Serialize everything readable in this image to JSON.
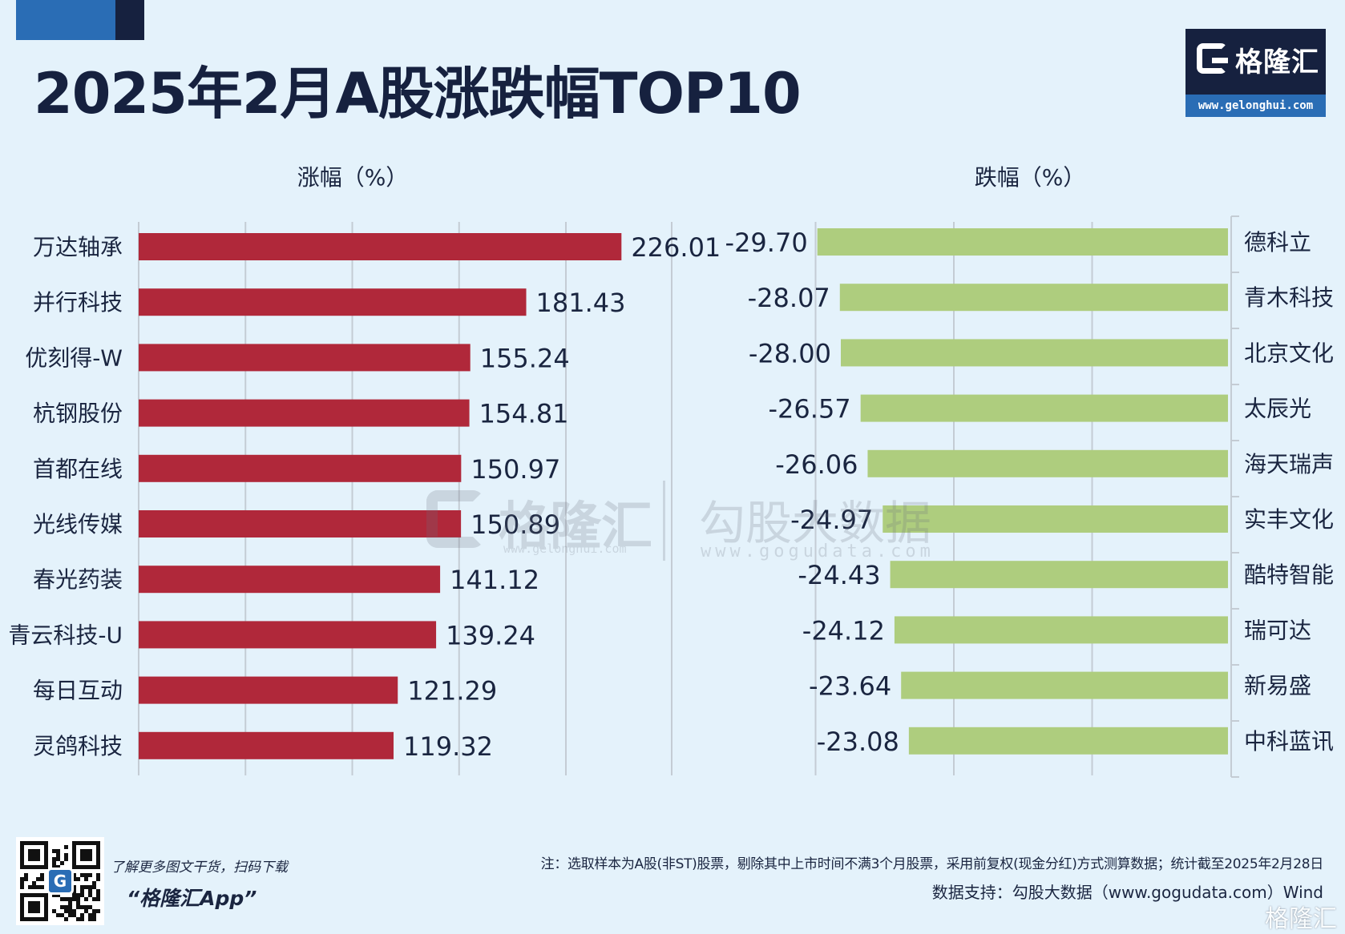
{
  "header": {
    "title": "2025年2月A股涨跌幅TOP10"
  },
  "logo": {
    "name": "格隆汇",
    "url": "www.gelonghui.com"
  },
  "watermark": {
    "glh_name": "格隆汇",
    "glh_url": "www.gelonghui.com",
    "ggd_name": "勾股大数据",
    "ggd_url": "www.gogudata.com"
  },
  "colors": {
    "gain_bar": "#b0283a",
    "loss_bar": "#aecd7e",
    "grid": "#c4ccd4",
    "text": "#1a2540"
  },
  "chart_data": [
    {
      "type": "bar",
      "orientation": "horizontal",
      "title": "涨幅（%）",
      "categories": [
        "万达轴承",
        "并行科技",
        "优刻得-W",
        "杭钢股份",
        "首都在线",
        "光线传媒",
        "春光药装",
        "青云科技-U",
        "每日互动",
        "灵鸽科技"
      ],
      "values": [
        226.01,
        181.43,
        155.24,
        154.81,
        150.97,
        150.89,
        141.12,
        139.24,
        121.29,
        119.32
      ],
      "value_labels": [
        "226.01",
        "181.43",
        "155.24",
        "154.81",
        "150.97",
        "150.89",
        "141.12",
        "139.24",
        "121.29",
        "119.32"
      ],
      "xlim": [
        0,
        250
      ],
      "grid": true
    },
    {
      "type": "bar",
      "orientation": "horizontal",
      "title": "跌幅（%）",
      "categories": [
        "德科立",
        "青木科技",
        "北京文化",
        "太辰光",
        "海天瑞声",
        "实丰文化",
        "酷特智能",
        "瑞可达",
        "新易盛",
        "中科蓝讯"
      ],
      "values": [
        -29.7,
        -28.07,
        -28.0,
        -26.57,
        -26.06,
        -24.97,
        -24.43,
        -24.12,
        -23.64,
        -23.08
      ],
      "value_labels": [
        "-29.70",
        "-28.07",
        "-28.00",
        "-26.57",
        "-26.06",
        "-24.97",
        "-24.43",
        "-24.12",
        "-23.64",
        "-23.08"
      ],
      "xlim": [
        -30,
        0
      ],
      "grid": true
    }
  ],
  "footer": {
    "qr_caption": "了解更多图文干货，扫码下载",
    "app_name": "“格隆汇App”",
    "note": "注：选取样本为A股(非ST)股票，剔除其中上市时间不满3个月股票，采用前复权(现金分红)方式测算数据；统计截至2025年2月28日",
    "source": "数据支持：勾股大数据（www.gogudata.com）Wind",
    "corner_mark": "格隆汇"
  }
}
